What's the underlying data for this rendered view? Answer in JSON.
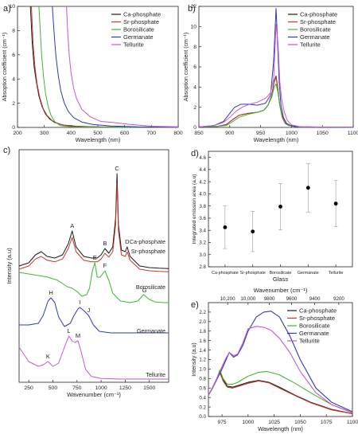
{
  "colors": {
    "ca": "#1a1a1a",
    "sr": "#c0392b",
    "boro": "#3cb832",
    "germ": "#2f39b0",
    "tell": "#c257d4"
  },
  "chart_data": [
    {
      "panel": "a)",
      "type": "line",
      "xlabel": "Wavelength (nm)",
      "ylabel": "Absoption coefficient (cm⁻¹)",
      "xlim": [
        200,
        800
      ],
      "ylim": [
        0,
        10
      ],
      "xticks": [
        200,
        300,
        400,
        500,
        600,
        700,
        800
      ],
      "yticks": [
        0,
        2,
        4,
        6,
        8,
        10
      ],
      "legend": [
        "Ca-phosphate",
        "Sr-phosphate",
        "Borosilicate",
        "Germanate",
        "Tellurite"
      ],
      "legend_position": "top-right",
      "series": [
        {
          "name": "Ca-phosphate",
          "x": [
            248,
            255,
            262,
            270,
            280,
            292,
            305,
            320,
            340,
            370,
            420,
            500,
            800
          ],
          "y": [
            10,
            7,
            5,
            3.8,
            2.6,
            1.7,
            1.1,
            0.7,
            0.4,
            0.2,
            0.1,
            0.04,
            0.02
          ]
        },
        {
          "name": "Sr-phosphate",
          "x": [
            252,
            258,
            265,
            273,
            283,
            295,
            310,
            330,
            360,
            400,
            500,
            800
          ],
          "y": [
            10,
            7,
            5,
            3.6,
            2.5,
            1.6,
            1.0,
            0.55,
            0.25,
            0.1,
            0.04,
            0.02
          ]
        },
        {
          "name": "Borosilicate",
          "x": [
            280,
            285,
            290,
            297,
            305,
            315,
            325,
            340,
            360,
            400,
            500,
            800
          ],
          "y": [
            10,
            8,
            6,
            4.2,
            2.8,
            1.7,
            1.0,
            0.45,
            0.15,
            0.05,
            0.02,
            0.01
          ]
        },
        {
          "name": "Germanate",
          "x": [
            330,
            336,
            343,
            352,
            362,
            375,
            390,
            410,
            440,
            480,
            550,
            650,
            800
          ],
          "y": [
            10,
            8,
            6,
            4.3,
            3.0,
            2.0,
            1.3,
            0.8,
            0.45,
            0.25,
            0.12,
            0.05,
            0.03
          ]
        },
        {
          "name": "Tellurite",
          "x": [
            383,
            387,
            393,
            400,
            410,
            420,
            440,
            470,
            510,
            560,
            620,
            700,
            800
          ],
          "y": [
            10,
            8,
            6,
            4.5,
            3.2,
            2.4,
            1.5,
            0.9,
            0.5,
            0.4,
            0.25,
            0.1,
            0.05
          ]
        }
      ]
    },
    {
      "panel": "b)",
      "type": "line",
      "xlabel": "Wavelength (nm)",
      "ylabel": "Absoption coefficient (cm⁻¹)",
      "xlim": [
        850,
        1100
      ],
      "ylim": [
        0,
        12
      ],
      "xticks": [
        850,
        900,
        950,
        1000,
        1050,
        1100
      ],
      "yticks": [
        0,
        2,
        4,
        6,
        8,
        10,
        12
      ],
      "legend": [
        "Ca-phosphate",
        "Sr-phosphate",
        "Borosilicate",
        "Germanate",
        "Tellurite"
      ],
      "legend_position": "top-right",
      "series": [
        {
          "name": "Ca-phosphate",
          "x": [
            850,
            880,
            895,
            905,
            915,
            930,
            945,
            955,
            962,
            968,
            972,
            975,
            978,
            981,
            985,
            990,
            995,
            1010,
            1100
          ],
          "y": [
            0.05,
            0.1,
            0.3,
            0.8,
            1.2,
            1.4,
            1.5,
            1.7,
            2.2,
            3.2,
            4.6,
            5.1,
            3.8,
            2.2,
            1.0,
            0.4,
            0.2,
            0.05,
            0.02
          ]
        },
        {
          "name": "Sr-phosphate",
          "x": [
            850,
            880,
            895,
            905,
            915,
            930,
            945,
            955,
            962,
            968,
            972,
            975,
            978,
            981,
            985,
            990,
            995,
            1010,
            1100
          ],
          "y": [
            0.05,
            0.1,
            0.3,
            0.8,
            1.2,
            1.4,
            1.5,
            1.7,
            2.2,
            3.2,
            4.5,
            5.0,
            3.7,
            2.2,
            1.0,
            0.4,
            0.2,
            0.05,
            0.02
          ]
        },
        {
          "name": "Borosilicate",
          "x": [
            850,
            880,
            895,
            905,
            915,
            930,
            945,
            955,
            962,
            968,
            972,
            975,
            978,
            981,
            985,
            990,
            995,
            1010,
            1100
          ],
          "y": [
            0.05,
            0.1,
            0.2,
            0.6,
            1.0,
            1.3,
            1.5,
            1.7,
            2.2,
            3.0,
            4.0,
            4.3,
            3.5,
            2.2,
            1.2,
            0.5,
            0.2,
            0.05,
            0.02
          ]
        },
        {
          "name": "Germanate",
          "x": [
            850,
            875,
            890,
            900,
            908,
            918,
            930,
            945,
            958,
            966,
            971,
            975,
            977,
            980,
            983,
            987,
            992,
            1000,
            1015,
            1100
          ],
          "y": [
            0.05,
            0.2,
            0.6,
            1.4,
            2.0,
            2.3,
            2.3,
            2.2,
            2.4,
            3.2,
            6.5,
            11.8,
            9.0,
            4.5,
            2.2,
            1.0,
            0.4,
            0.15,
            0.05,
            0.02
          ]
        },
        {
          "name": "Tellurite",
          "x": [
            850,
            875,
            890,
            900,
            910,
            920,
            932,
            945,
            958,
            966,
            971,
            975,
            978,
            981,
            984,
            988,
            993,
            1000,
            1015,
            1100
          ],
          "y": [
            0.05,
            0.2,
            0.5,
            1.0,
            1.6,
            2.0,
            2.3,
            2.5,
            2.9,
            3.4,
            4.8,
            10.2,
            8.5,
            4.5,
            2.8,
            1.6,
            0.7,
            0.25,
            0.05,
            0.02
          ]
        }
      ]
    },
    {
      "panel": "c)",
      "type": "line",
      "xlabel": "Wavenumber (cm⁻¹)",
      "ylabel": "Intensity (a.u)",
      "xlim": [
        150,
        1700
      ],
      "xticks": [
        250,
        500,
        750,
        1000,
        1250,
        1500
      ],
      "curve_labels": [
        "Ca-phosphate",
        "Sr-phosphate",
        "Borosilicate",
        "Germanate",
        "Tellurite"
      ],
      "peaks": [
        {
          "label": "A",
          "x": 700
        },
        {
          "label": "B",
          "x": 1040
        },
        {
          "label": "C",
          "x": 1165
        },
        {
          "label": "D",
          "x": 1270
        },
        {
          "label": "E",
          "x": 935
        },
        {
          "label": "F",
          "x": 1040
        },
        {
          "label": "G",
          "x": 1450
        },
        {
          "label": "H",
          "x": 480
        },
        {
          "label": "I",
          "x": 780
        },
        {
          "label": "J",
          "x": 870
        },
        {
          "label": "K",
          "x": 450
        },
        {
          "label": "L",
          "x": 665
        },
        {
          "label": "M",
          "x": 760
        }
      ],
      "series": [
        {
          "name": "Ca-phosphate",
          "offset": 3.55,
          "x": [
            150,
            250,
            320,
            380,
            440,
            520,
            600,
            660,
            700,
            740,
            820,
            900,
            960,
            1000,
            1040,
            1080,
            1120,
            1150,
            1165,
            1180,
            1210,
            1250,
            1270,
            1300,
            1400,
            1500,
            1600,
            1700
          ],
          "y": [
            0.1,
            0.2,
            0.45,
            0.55,
            0.4,
            0.35,
            0.45,
            0.8,
            1.2,
            0.7,
            0.4,
            0.35,
            0.35,
            0.45,
            0.65,
            0.5,
            0.7,
            1.6,
            3.0,
            1.4,
            0.6,
            0.55,
            0.7,
            0.4,
            0.1,
            0.05,
            0.03,
            0.02
          ]
        },
        {
          "name": "Sr-phosphate",
          "offset": 3.45,
          "x": [
            150,
            250,
            320,
            380,
            440,
            520,
            600,
            660,
            700,
            740,
            820,
            900,
            960,
            1000,
            1040,
            1080,
            1120,
            1150,
            1165,
            1180,
            1210,
            1250,
            1270,
            1300,
            1400,
            1500,
            1600,
            1700
          ],
          "y": [
            0.1,
            0.2,
            0.42,
            0.5,
            0.38,
            0.33,
            0.42,
            0.75,
            1.1,
            0.65,
            0.38,
            0.33,
            0.33,
            0.42,
            0.6,
            0.48,
            0.65,
            1.5,
            2.8,
            1.3,
            0.55,
            0.5,
            0.65,
            0.38,
            0.1,
            0.05,
            0.03,
            0.02
          ]
        },
        {
          "name": "Borosilicate",
          "offset": 2.5,
          "x": [
            150,
            250,
            350,
            450,
            550,
            650,
            700,
            750,
            800,
            850,
            880,
            910,
            935,
            960,
            990,
            1040,
            1080,
            1120,
            1200,
            1300,
            1380,
            1440,
            1500,
            1560,
            1650,
            1700
          ],
          "y": [
            0.95,
            0.9,
            0.85,
            0.8,
            0.7,
            0.5,
            0.45,
            0.35,
            0.2,
            0.25,
            0.45,
            1.0,
            1.25,
            0.8,
            0.8,
            1.0,
            0.7,
            0.3,
            0.05,
            0.0,
            0.05,
            0.25,
            0.1,
            0.02,
            0.0,
            0.0
          ]
        },
        {
          "name": "Germanate",
          "offset": 1.55,
          "x": [
            150,
            250,
            350,
            400,
            450,
            480,
            520,
            560,
            620,
            680,
            720,
            760,
            780,
            820,
            870,
            920,
            980,
            1100,
            1300,
            1500,
            1700
          ],
          "y": [
            0.25,
            0.25,
            0.3,
            0.55,
            1.0,
            1.1,
            0.95,
            0.5,
            0.2,
            0.3,
            0.55,
            0.75,
            0.8,
            0.7,
            0.55,
            0.25,
            0.05,
            0.0,
            0.0,
            0.0,
            0.0
          ]
        },
        {
          "name": "Tellurite",
          "offset": 0.1,
          "x": [
            150,
            250,
            350,
            400,
            450,
            500,
            560,
            620,
            665,
            700,
            730,
            760,
            790,
            840,
            900,
            1000,
            1200,
            1400,
            1700
          ],
          "y": [
            1.0,
            0.55,
            0.4,
            0.45,
            0.55,
            0.4,
            0.5,
            1.0,
            1.35,
            1.2,
            1.15,
            1.2,
            0.9,
            0.3,
            0.08,
            0.02,
            0.0,
            0.0,
            0.0
          ]
        }
      ]
    },
    {
      "panel": "d)",
      "type": "scatter",
      "xlabel": "Glass",
      "ylabel": "Integrated emission area (a.u)",
      "ylim": [
        2.8,
        4.7
      ],
      "yticks": [
        2.8,
        3.0,
        3.2,
        3.4,
        3.6,
        3.8,
        4.0,
        4.2,
        4.4,
        4.6
      ],
      "categories": [
        "Ca-phosphate",
        "Sr-phosphate",
        "Borosilicate",
        "Germanate",
        "Tellurite"
      ],
      "values": [
        3.45,
        3.38,
        3.79,
        4.1,
        3.84
      ],
      "errors": [
        0.35,
        0.33,
        0.38,
        0.4,
        0.38
      ]
    },
    {
      "panel": "e)",
      "type": "line",
      "xlabel": "Wavelength (nm)",
      "x2label": "Wavenumber (cm⁻¹)",
      "ylabel": "Intensity (a.u)",
      "xlim": [
        962,
        1100
      ],
      "ylim": [
        0,
        2.4
      ],
      "xticks": [
        975,
        1000,
        1025,
        1050,
        1075,
        1100
      ],
      "x2ticks": [
        10200,
        10000,
        9800,
        9600,
        9400,
        9200
      ],
      "x2ticklabels": [
        "10,200",
        "10,000",
        "9800",
        "9600",
        "9400",
        "9200"
      ],
      "yticks": [
        0,
        0.2,
        0.4,
        0.6,
        0.8,
        1.0,
        1.2,
        1.4,
        1.6,
        1.8,
        2.0,
        2.2
      ],
      "legend": [
        "Ca-phosphate",
        "Sr-phosphate",
        "Borosilicate",
        "Germanate",
        "Tellurite"
      ],
      "legend_position": "top-right",
      "series": [
        {
          "name": "Ca-phosphate",
          "x": [
            962,
            966,
            970,
            973,
            976,
            980,
            985,
            990,
            1000,
            1010,
            1020,
            1030,
            1045,
            1060,
            1080,
            1100
          ],
          "y": [
            0.45,
            0.6,
            0.8,
            0.95,
            0.78,
            0.64,
            0.62,
            0.65,
            0.72,
            0.76,
            0.72,
            0.62,
            0.45,
            0.3,
            0.15,
            0.06
          ]
        },
        {
          "name": "Sr-phosphate",
          "x": [
            962,
            966,
            970,
            973,
            976,
            980,
            985,
            990,
            1000,
            1010,
            1020,
            1030,
            1045,
            1060,
            1080,
            1100
          ],
          "y": [
            0.45,
            0.6,
            0.78,
            0.92,
            0.75,
            0.62,
            0.6,
            0.63,
            0.7,
            0.75,
            0.71,
            0.6,
            0.44,
            0.29,
            0.14,
            0.06
          ]
        },
        {
          "name": "Borosilicate",
          "x": [
            962,
            966,
            970,
            973,
            976,
            980,
            985,
            990,
            1000,
            1010,
            1018,
            1030,
            1045,
            1060,
            1080,
            1100
          ],
          "y": [
            0.45,
            0.62,
            0.8,
            0.98,
            0.8,
            0.68,
            0.68,
            0.72,
            0.85,
            0.93,
            0.95,
            0.88,
            0.7,
            0.5,
            0.25,
            0.08
          ]
        },
        {
          "name": "Germanate",
          "x": [
            962,
            966,
            970,
            974,
            978,
            982,
            986,
            990,
            995,
            1000,
            1008,
            1015,
            1022,
            1030,
            1040,
            1050,
            1065,
            1080,
            1100
          ],
          "y": [
            0.45,
            0.6,
            0.78,
            0.95,
            1.15,
            1.35,
            1.25,
            1.3,
            1.5,
            1.8,
            2.1,
            2.2,
            2.22,
            2.1,
            1.7,
            1.2,
            0.6,
            0.3,
            0.1
          ]
        },
        {
          "name": "Tellurite",
          "x": [
            962,
            966,
            970,
            974,
            978,
            982,
            986,
            990,
            995,
            1000,
            1008,
            1015,
            1022,
            1030,
            1040,
            1050,
            1065,
            1080,
            1100
          ],
          "y": [
            0.45,
            0.6,
            0.8,
            1.0,
            1.2,
            1.35,
            1.28,
            1.32,
            1.55,
            1.85,
            1.9,
            1.88,
            1.82,
            1.65,
            1.35,
            0.95,
            0.5,
            0.25,
            0.08
          ]
        }
      ]
    }
  ]
}
